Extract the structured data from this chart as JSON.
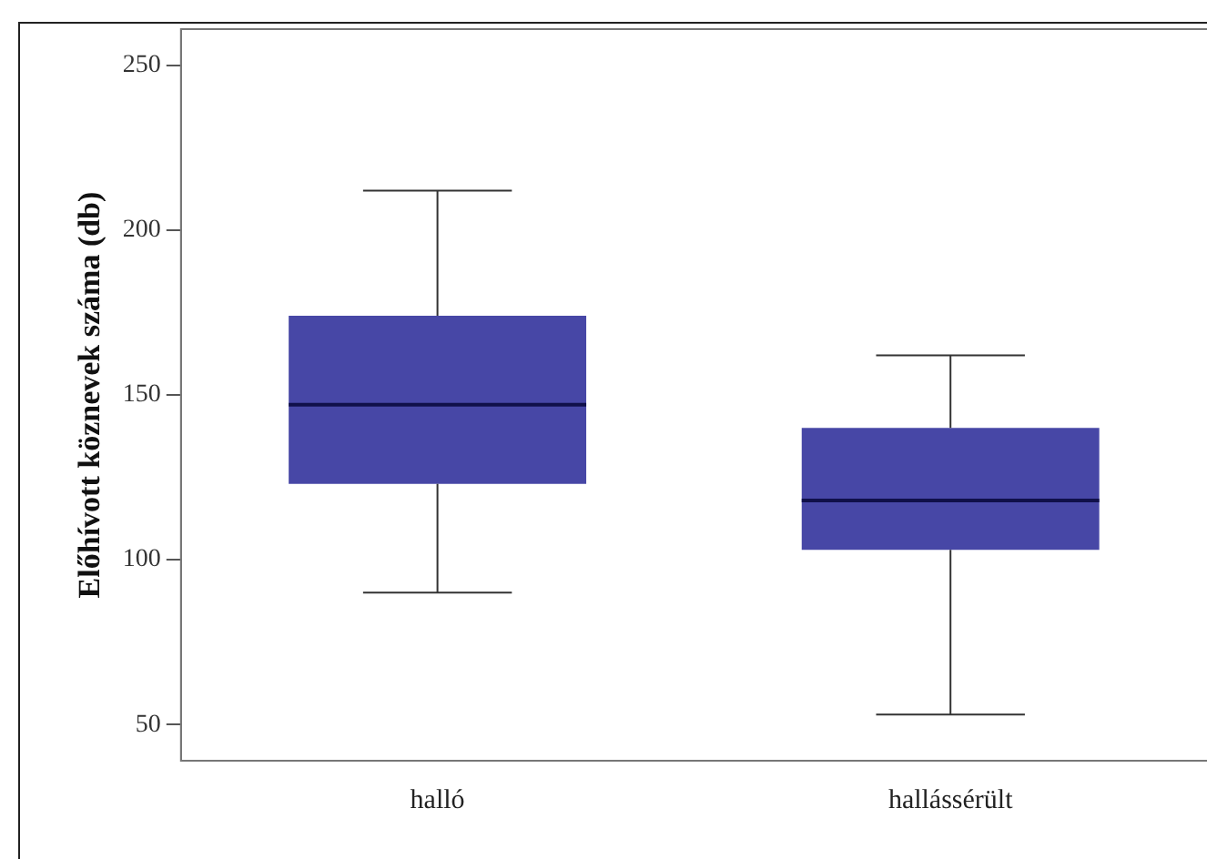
{
  "chart_data": {
    "type": "box",
    "ylabel": "Előhívott köznevek száma (db)",
    "categories": [
      "halló",
      "hallássérült"
    ],
    "color": "#4747a6",
    "boxes": [
      {
        "low": 90,
        "q1": 123,
        "median": 147,
        "q3": 174,
        "high": 212
      },
      {
        "low": 53,
        "q1": 103,
        "median": 118,
        "q3": 140,
        "high": 162
      }
    ],
    "ylim": [
      39,
      261
    ],
    "yticks": [
      50,
      100,
      150,
      200,
      250
    ],
    "grid": false,
    "legend": false
  }
}
